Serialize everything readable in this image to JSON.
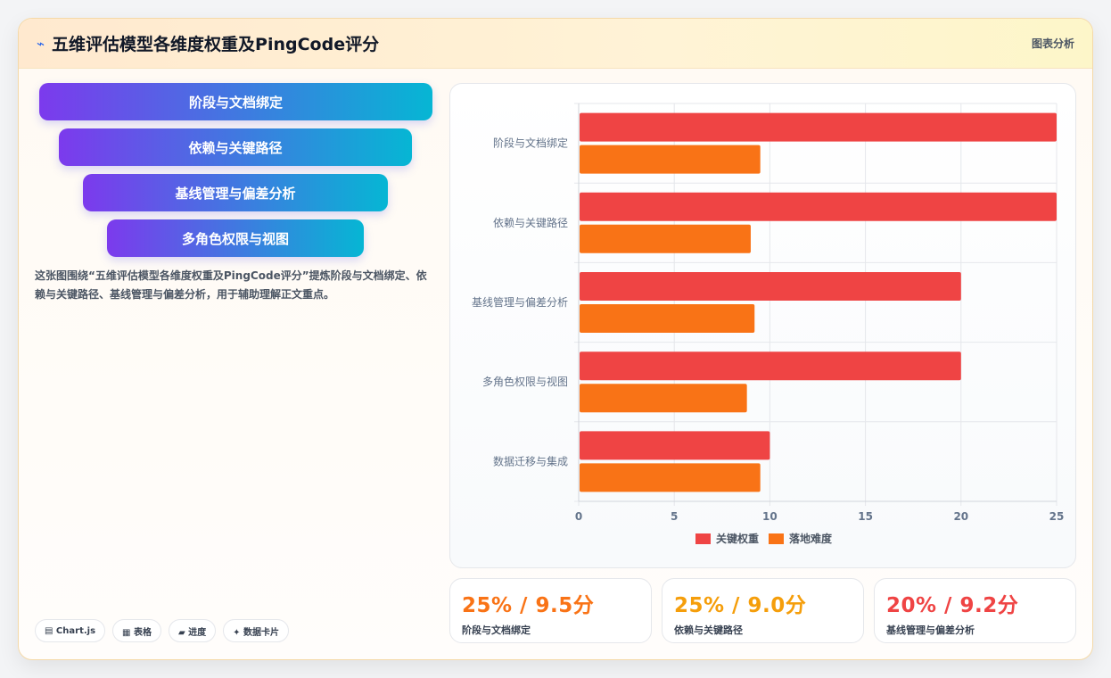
{
  "header": {
    "title": "五维评估模型各维度权重及PingCode评分",
    "tag": "图表分析",
    "icon": "trend-line-icon"
  },
  "funnel": {
    "items": [
      {
        "label": "阶段与文档绑定"
      },
      {
        "label": "依赖与关键路径"
      },
      {
        "label": "基线管理与偏差分析"
      },
      {
        "label": "多角色权限与视图"
      }
    ]
  },
  "description": "这张图围绕“五维评估模型各维度权重及PingCode评分”提炼阶段与文档绑定、依赖与关键路径、基线管理与偏差分析，用于辅助理解正文重点。",
  "pills": [
    {
      "label": "▤ Chart.js",
      "icon": "chart-icon"
    },
    {
      "label": "▦ 表格",
      "icon": "table-icon"
    },
    {
      "label": "▰ 进度",
      "icon": "progress-icon"
    },
    {
      "label": "✦ 数据卡片",
      "icon": "sparkle-icon"
    }
  ],
  "chart_data": {
    "type": "bar",
    "orientation": "horizontal",
    "categories": [
      "阶段与文档绑定",
      "依赖与关键路径",
      "基线管理与偏差分析",
      "多角色权限与视图",
      "数据迁移与集成"
    ],
    "series": [
      {
        "name": "关键权重",
        "values": [
          25,
          25,
          20,
          20,
          10
        ],
        "color": "#ef4444"
      },
      {
        "name": "落地难度",
        "values": [
          9.5,
          9.0,
          9.2,
          8.8,
          9.5
        ],
        "color": "#f97316"
      }
    ],
    "xlim": [
      0,
      25
    ],
    "xticks": [
      "0",
      "5",
      "10",
      "15",
      "20",
      "25"
    ],
    "grid": true,
    "legend": "bottom"
  },
  "stats": [
    {
      "value": "25% / 9.5分",
      "label": "阶段与文档绑定",
      "color": "#f97316"
    },
    {
      "value": "25% / 9.0分",
      "label": "依赖与关键路径",
      "color": "#f59e0b"
    },
    {
      "value": "20% / 9.2分",
      "label": "基线管理与偏差分析",
      "color": "#ef4444"
    }
  ]
}
